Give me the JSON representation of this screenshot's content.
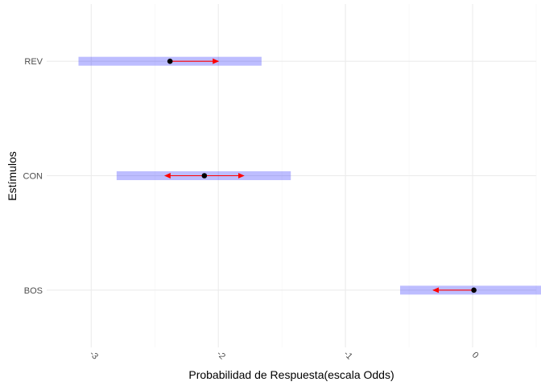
{
  "chart_data": {
    "type": "interval",
    "title": "",
    "xlabel": "Probabilidad de Respuesta(escala Odds)",
    "ylabel": "Estímulos",
    "xlim": [
      -3.35,
      0.5
    ],
    "x_ticks": [
      -3,
      -2,
      -1,
      0
    ],
    "x_tick_labels": [
      "-3",
      "-2",
      "-1",
      "0"
    ],
    "grid": true,
    "categories": [
      "BOS",
      "CON",
      "REV"
    ],
    "series": [
      {
        "type": "interval-band",
        "color": "#0000ff",
        "opacity": 0.26,
        "values": [
          {
            "category": "BOS",
            "low": -0.57,
            "high": 0.58
          },
          {
            "category": "CON",
            "low": -2.8,
            "high": -1.43
          },
          {
            "category": "REV",
            "low": -3.1,
            "high": -1.66
          }
        ]
      },
      {
        "type": "point",
        "color": "#000000",
        "values": [
          {
            "category": "BOS",
            "x": 0.01
          },
          {
            "category": "CON",
            "x": -2.11
          },
          {
            "category": "REV",
            "x": -2.38
          }
        ]
      },
      {
        "type": "arrow",
        "color": "#ff0000",
        "values": [
          {
            "category": "BOS",
            "from": 0.01,
            "to": -0.31,
            "head_from": false,
            "head_to": true
          },
          {
            "category": "CON",
            "from": -2.42,
            "to": -1.8,
            "head_from": true,
            "head_to": true
          },
          {
            "category": "REV",
            "from": -2.38,
            "to": -2.0,
            "head_from": false,
            "head_to": true
          }
        ]
      }
    ]
  }
}
